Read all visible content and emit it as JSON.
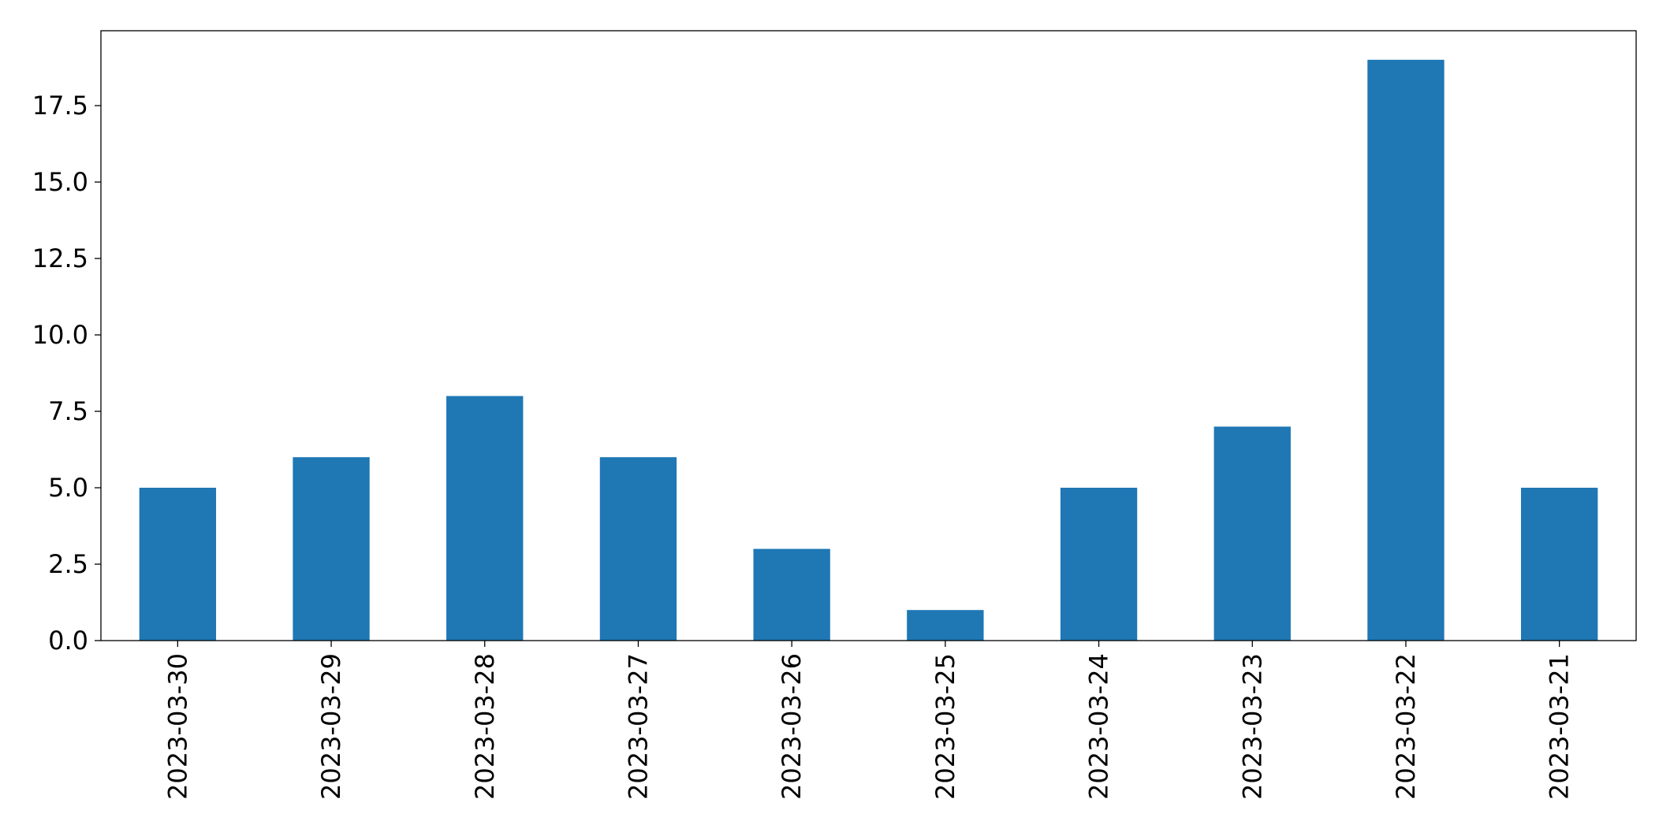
{
  "chart_data": {
    "type": "bar",
    "categories": [
      "2023-03-30",
      "2023-03-29",
      "2023-03-28",
      "2023-03-27",
      "2023-03-26",
      "2023-03-25",
      "2023-03-24",
      "2023-03-23",
      "2023-03-22",
      "2023-03-21"
    ],
    "values": [
      5,
      6,
      8,
      6,
      3,
      1,
      5,
      7,
      19,
      5
    ],
    "color": "#1f77b4",
    "ylim": [
      0,
      19.95
    ],
    "yticks": [
      {
        "value": 0,
        "label": "0.0"
      },
      2.5,
      {
        "value": 5,
        "label": "5.0"
      },
      7.5,
      {
        "value": 10,
        "label": "10.0"
      },
      12.5,
      {
        "value": 15,
        "label": "15.0"
      },
      17.5
    ],
    "grid": false
  }
}
